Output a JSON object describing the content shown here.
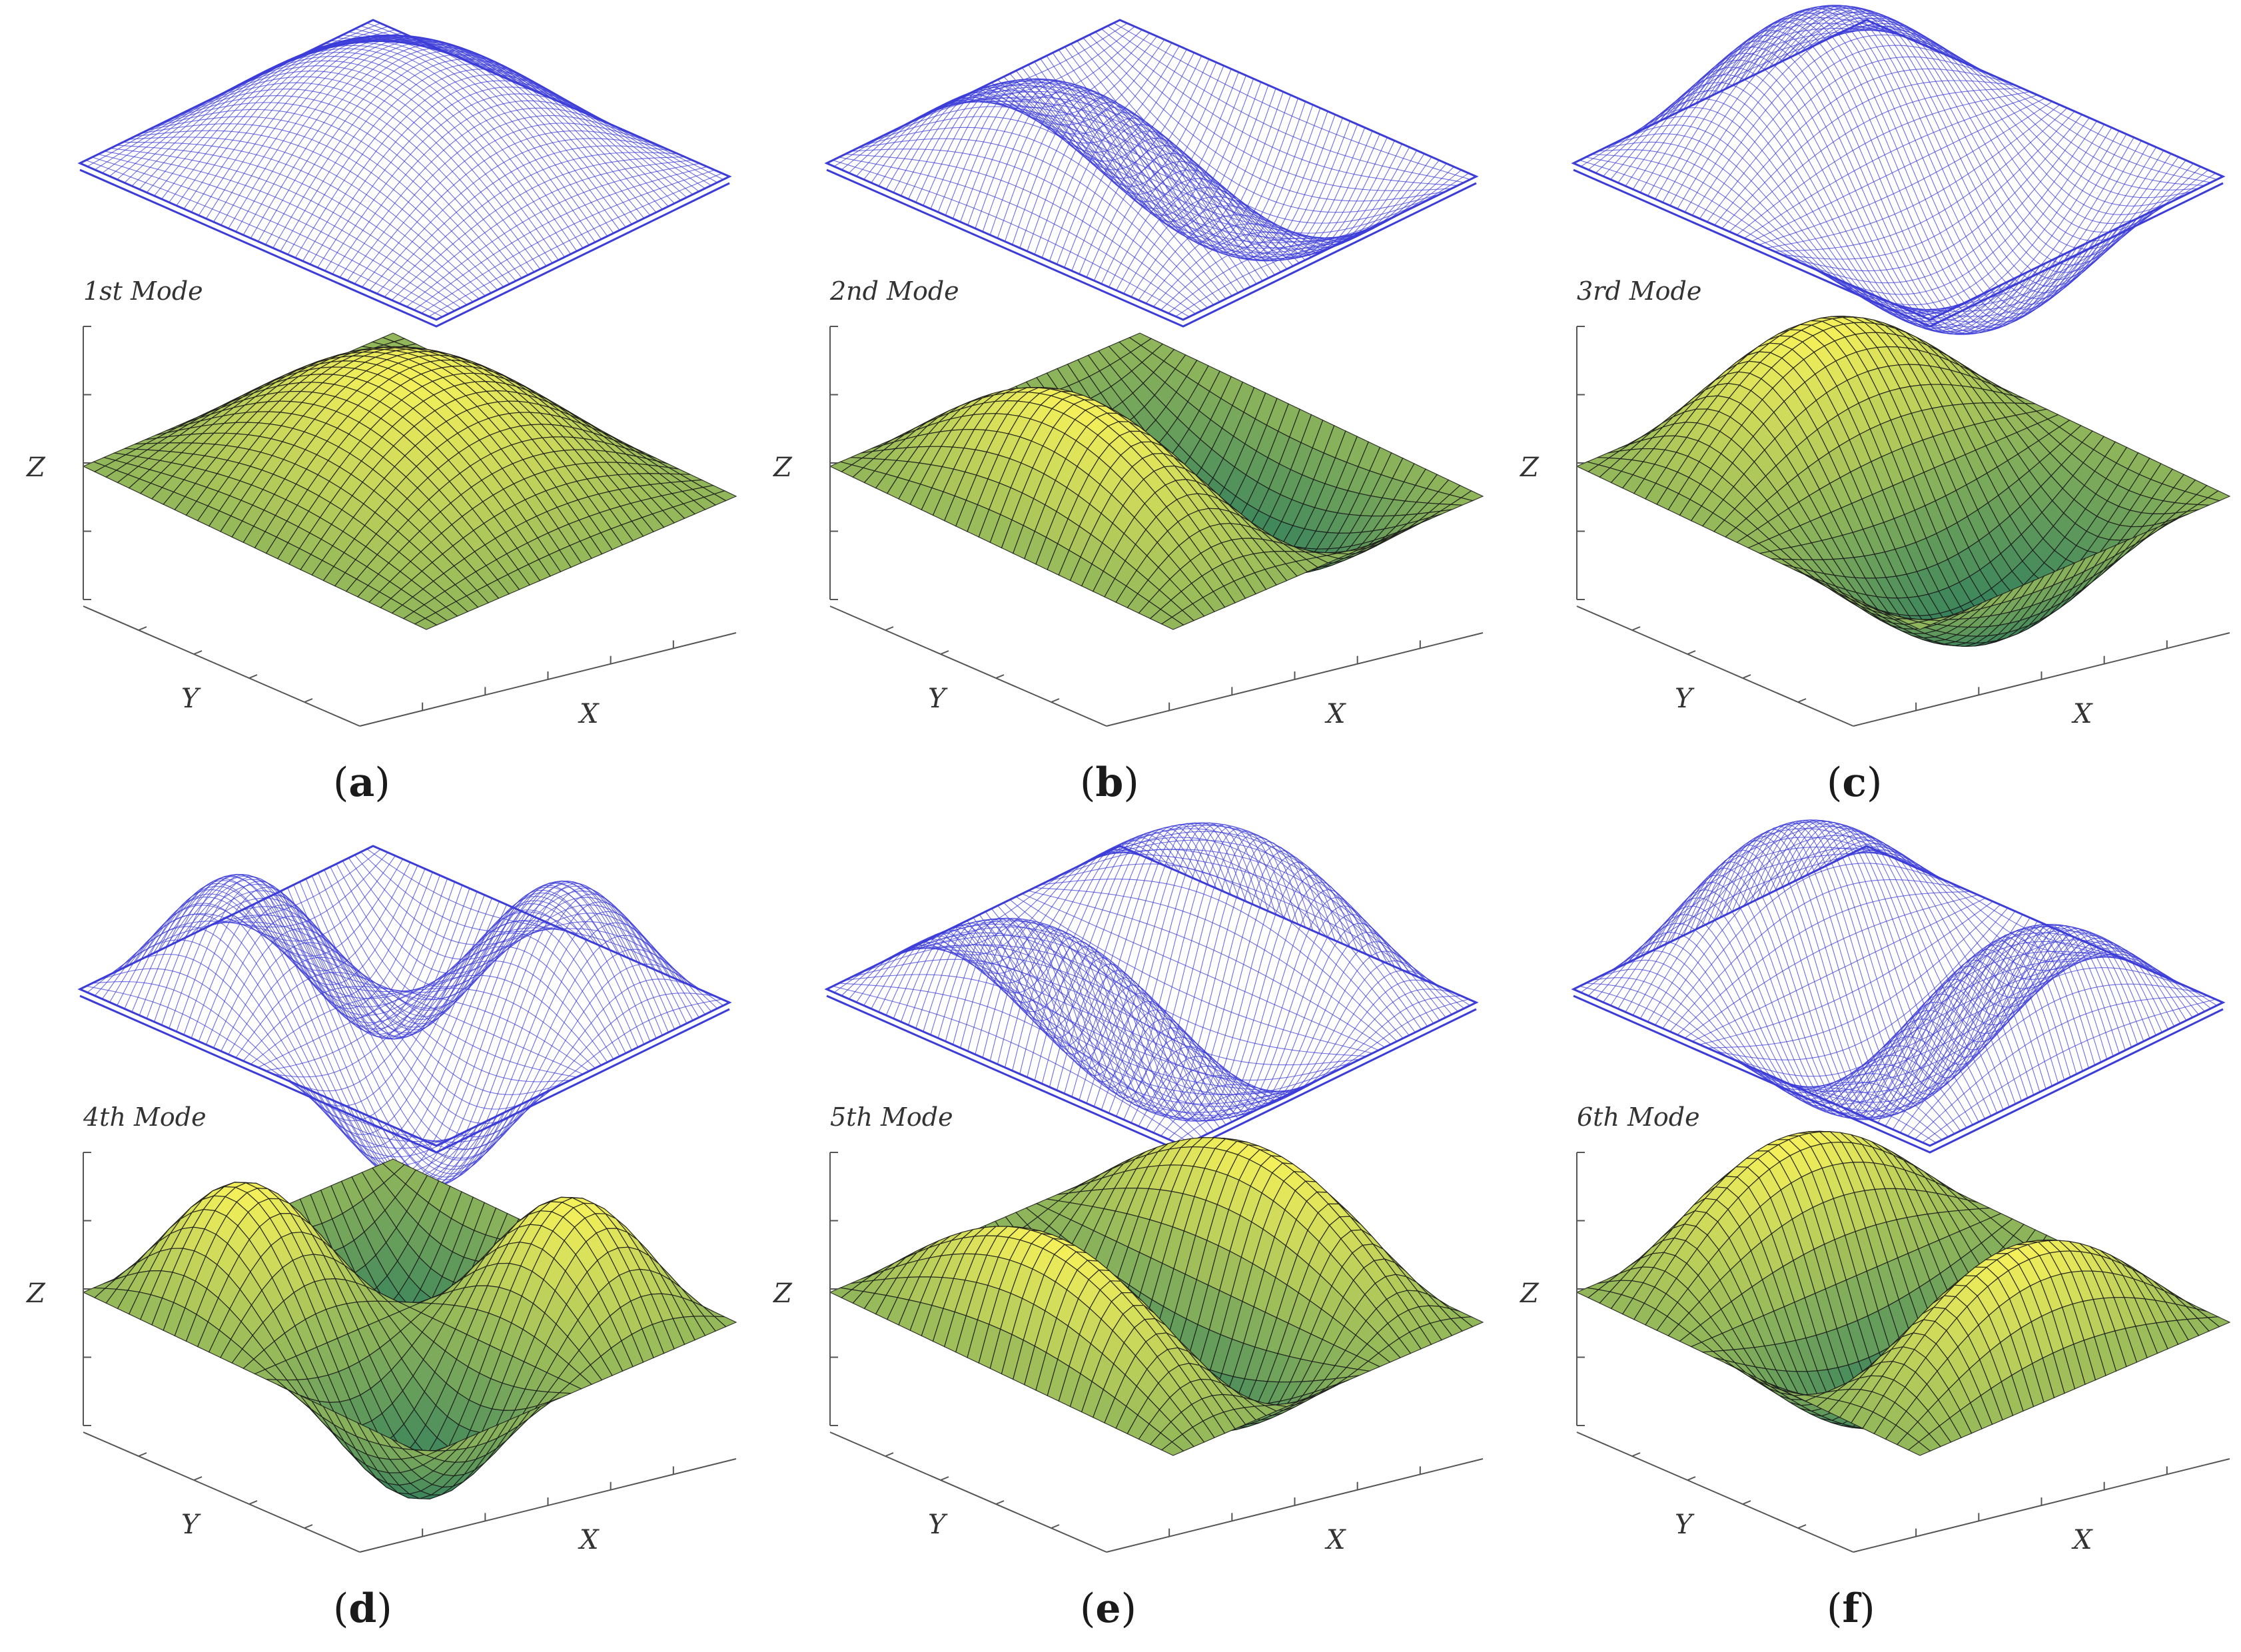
{
  "figure": {
    "panels": [
      {
        "id": "a",
        "label_letter": "a",
        "mode_title": "1st Mode",
        "mode_m": 1,
        "mode_n": 1,
        "z_label": "Z",
        "x_label": "X",
        "y_label": "Y"
      },
      {
        "id": "b",
        "label_letter": "b",
        "mode_title": "2nd Mode",
        "mode_m": 2,
        "mode_n": 1,
        "z_label": "Z",
        "x_label": "X",
        "y_label": "Y"
      },
      {
        "id": "c",
        "label_letter": "c",
        "mode_title": "3rd Mode",
        "mode_m": 1,
        "mode_n": 2,
        "z_label": "Z",
        "x_label": "X",
        "y_label": "Y"
      },
      {
        "id": "d",
        "label_letter": "d",
        "mode_title": "4th Mode",
        "mode_m": 2,
        "mode_n": 2,
        "z_label": "Z",
        "x_label": "X",
        "y_label": "Y"
      },
      {
        "id": "e",
        "label_letter": "e",
        "mode_title": "5th Mode",
        "mode_m": 3,
        "mode_n": 1,
        "z_label": "Z",
        "x_label": "X",
        "y_label": "Y"
      },
      {
        "id": "f",
        "label_letter": "f",
        "mode_title": "6th Mode",
        "mode_m": 1,
        "mode_n": 3,
        "z_label": "Z",
        "x_label": "X",
        "y_label": "Y"
      }
    ],
    "colors": {
      "mesh_blue": "#3c3cd8",
      "surface_low": "#2e7d5b",
      "surface_high": "#f4f05a",
      "grid_line": "#1a1a1a",
      "axis_line": "#555555"
    }
  }
}
